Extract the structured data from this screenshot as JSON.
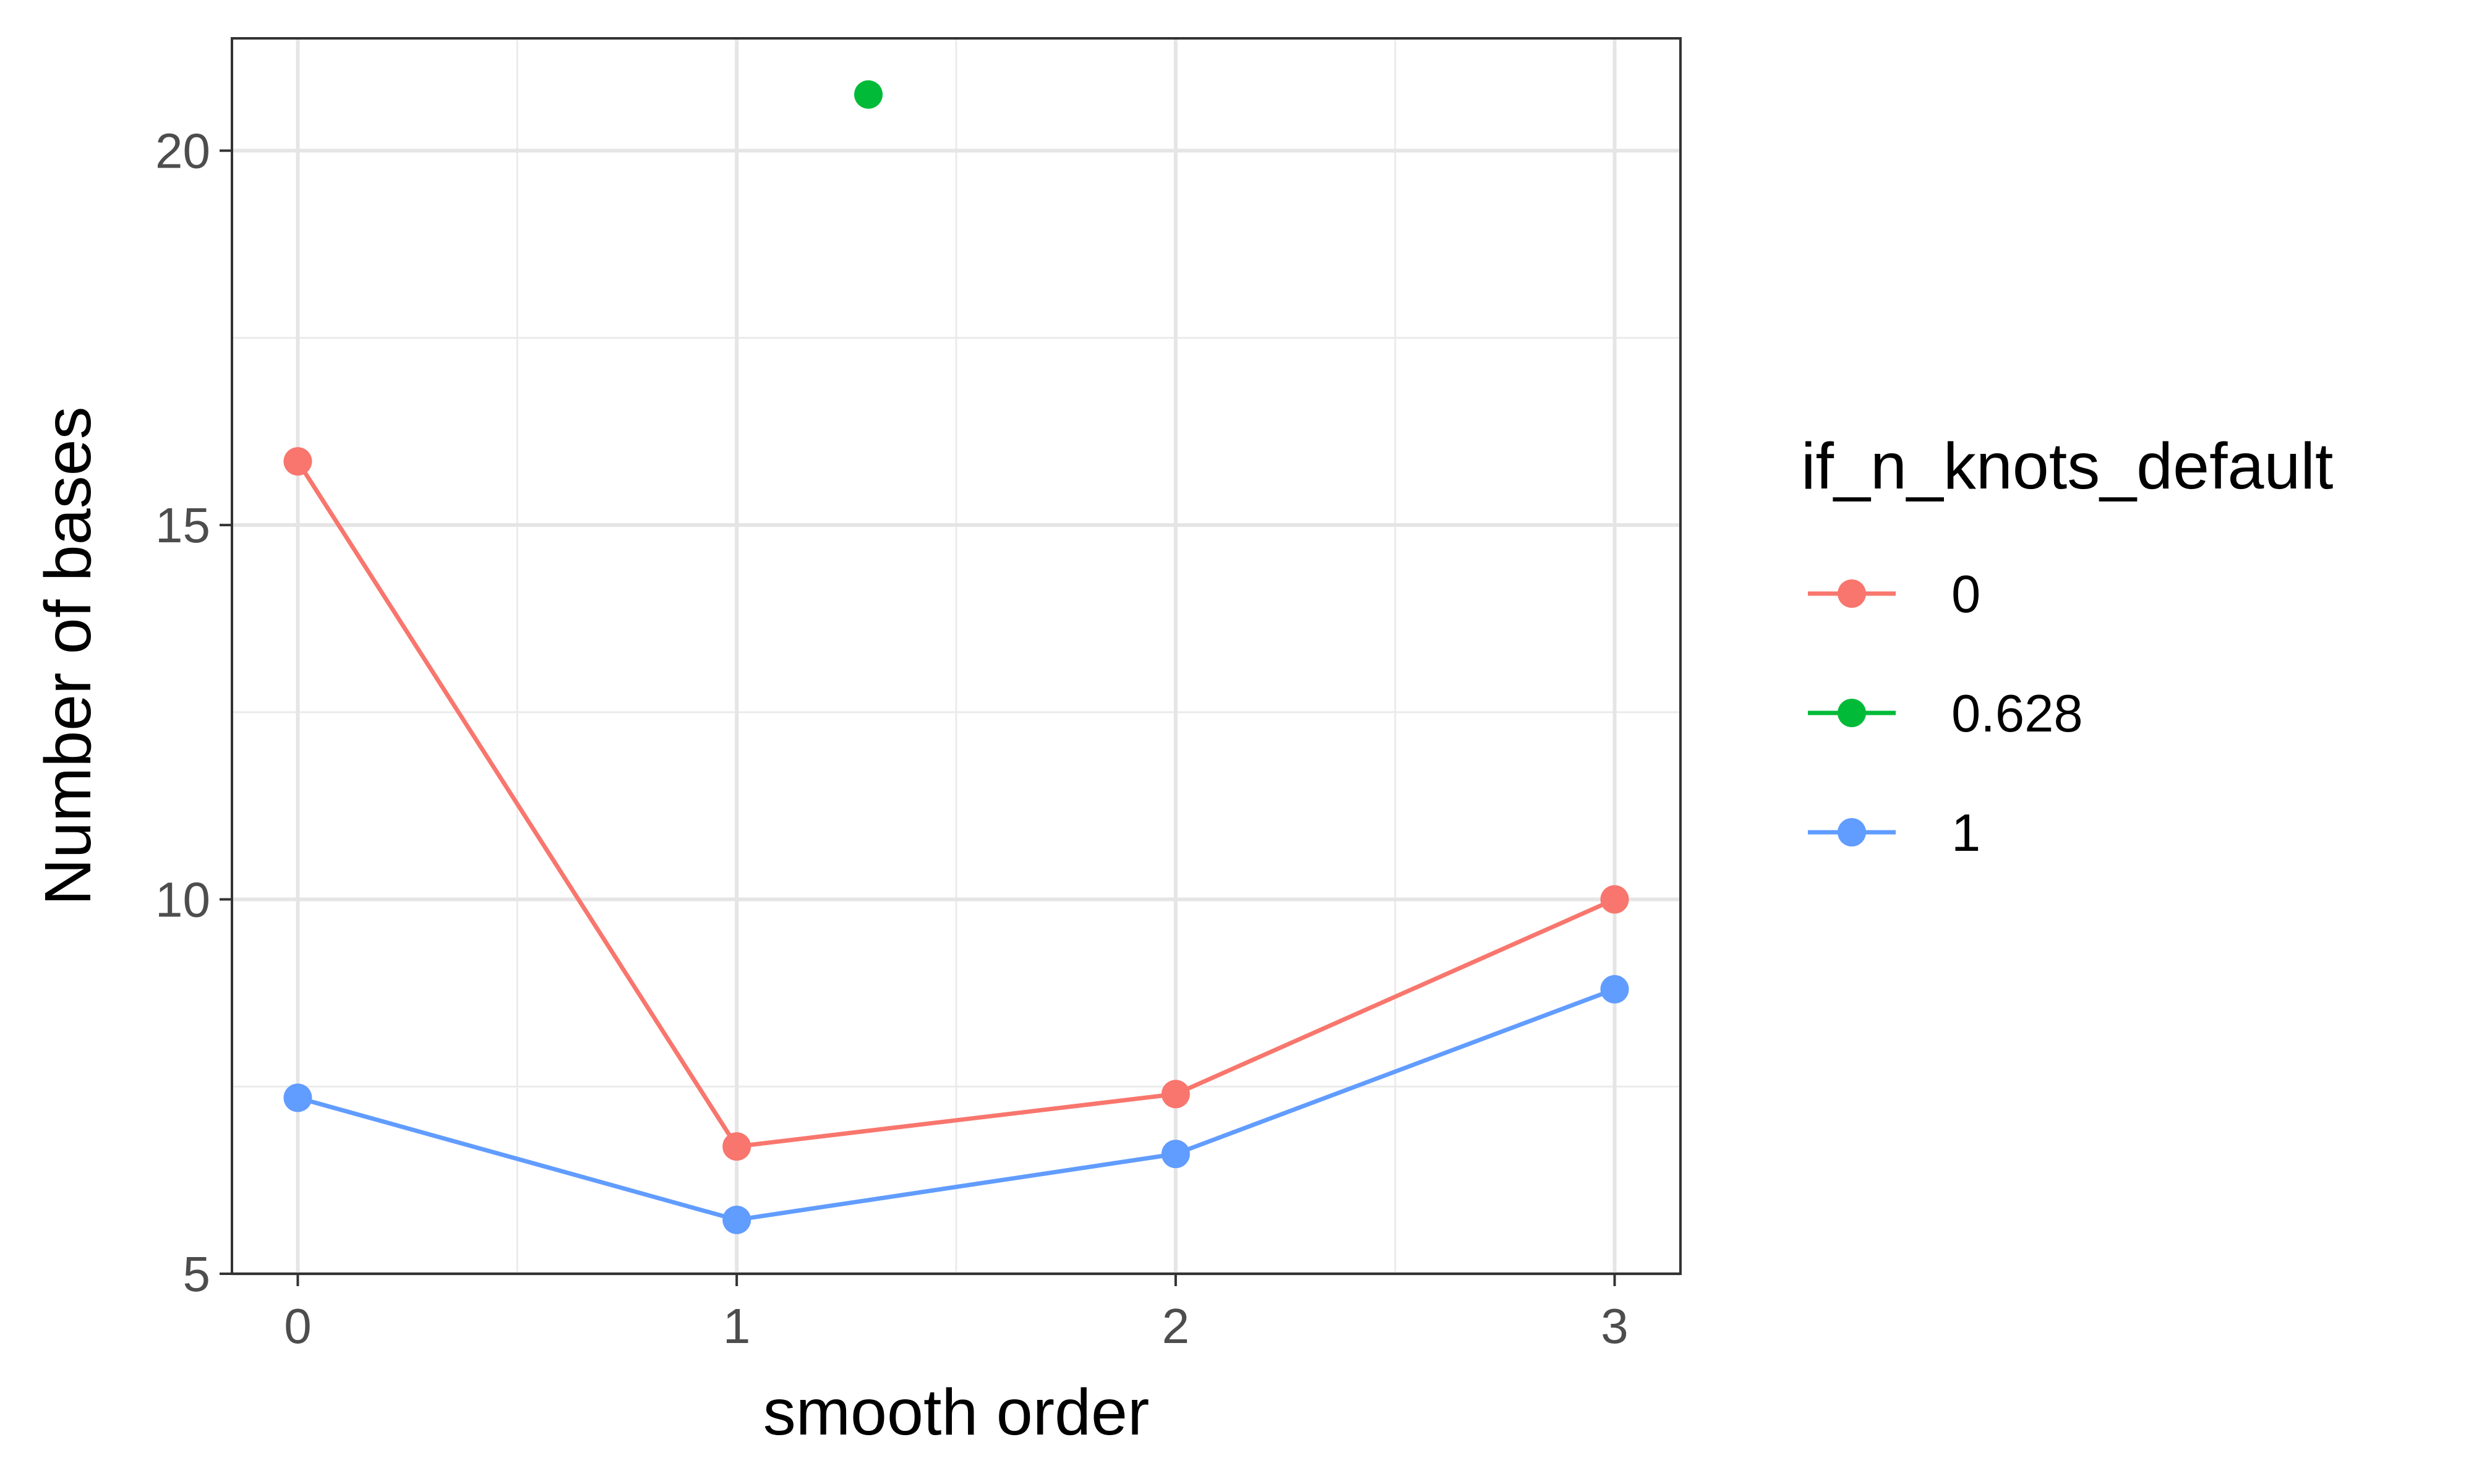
{
  "chart_data": {
    "type": "line",
    "xlabel": "smooth order",
    "ylabel": "Number of bases",
    "xlim": [
      -0.15,
      3.15
    ],
    "ylim": [
      5,
      21.5
    ],
    "x_ticks": [
      0,
      1,
      2,
      3
    ],
    "x_minor_ticks": [
      0.5,
      1.5,
      2.5
    ],
    "y_ticks": [
      5,
      10,
      15,
      20
    ],
    "y_minor_ticks": [
      7.5,
      12.5,
      17.5
    ],
    "grid": true,
    "legend_title": "if_n_knots_default",
    "legend_position": "right",
    "series": [
      {
        "name": "0",
        "color": "#F8766D",
        "x": [
          0,
          1,
          2,
          3
        ],
        "y": [
          15.85,
          6.7,
          7.4,
          10.0
        ]
      },
      {
        "name": "0.628",
        "color": "#00BA38",
        "x": [
          1.3
        ],
        "y": [
          20.75
        ]
      },
      {
        "name": "1",
        "color": "#619CFF",
        "x": [
          0,
          1,
          2,
          3
        ],
        "y": [
          7.35,
          5.72,
          6.6,
          8.8
        ]
      }
    ]
  }
}
